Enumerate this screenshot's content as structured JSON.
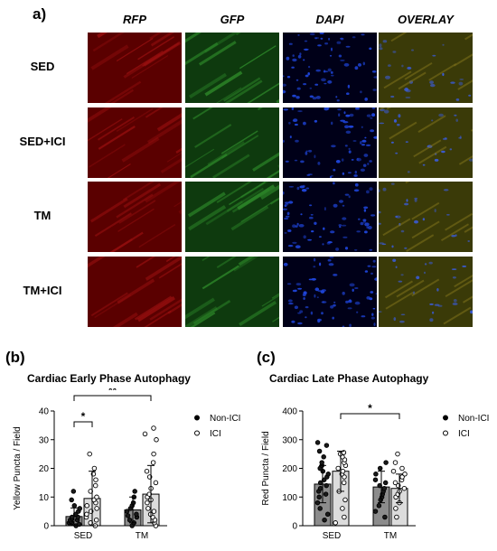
{
  "panel_a": {
    "label": "a)",
    "columns": [
      "RFP",
      "GFP",
      "DAPI",
      "OVERLAY"
    ],
    "rows": [
      "SED",
      "SED+ICI",
      "TM",
      "TM+ICI"
    ],
    "colors": {
      "RFP": [
        "#5a0000",
        "#9a1010"
      ],
      "GFP": [
        "#0e3a0e",
        "#2e8a2a"
      ],
      "DAPI": [
        "#000018",
        "#1e44d8"
      ],
      "OVERLAY": [
        "#3a3a08",
        "#7a6e1a"
      ]
    }
  },
  "chart_data": [
    {
      "panel_label": "(b)",
      "type": "bar",
      "title": "Cardiac Early Phase Autophagy",
      "ylabel": "Yellow Puncta / Field",
      "xlabel": "",
      "categories": [
        "SED",
        "TM"
      ],
      "ylim": [
        0,
        40
      ],
      "yticks": [
        "0",
        "10",
        "20",
        "30",
        "40"
      ],
      "series": [
        {
          "name": "Non-ICI",
          "values": [
            3.2,
            5.5
          ],
          "errors": [
            3.0,
            4.5
          ],
          "marker": "filled",
          "points": [
            [
              0,
              0.5,
              1,
              1,
              1.5,
              2,
              2,
              2.5,
              3,
              3,
              4,
              5,
              6,
              7,
              9,
              12
            ],
            [
              0,
              1,
              2,
              3,
              3.5,
              4,
              5,
              6,
              7,
              8,
              10,
              12
            ]
          ]
        },
        {
          "name": "ICI",
          "values": [
            9.5,
            11
          ],
          "errors": [
            9.5,
            10
          ],
          "marker": "open",
          "points": [
            [
              0,
              1,
              2,
              3,
              4,
              5,
              6,
              7,
              8,
              9,
              10,
              12,
              14,
              16,
              18,
              20,
              25
            ],
            [
              0,
              1,
              2,
              3,
              4,
              5,
              6,
              8,
              9,
              10,
              11,
              13,
              15,
              17,
              19,
              22,
              25,
              30,
              32,
              34
            ]
          ]
        }
      ],
      "significance": [
        {
          "label": "*",
          "from": "SED Non-ICI",
          "to": "SED ICI"
        },
        {
          "label": "**",
          "from": "SED Non-ICI",
          "to": "TM ICI"
        }
      ],
      "legend": [
        "Non-ICI",
        "ICI"
      ],
      "legend_placement": "right"
    },
    {
      "panel_label": "(c)",
      "type": "bar",
      "title": "Cardiac Late Phase Autophagy",
      "ylabel": "Red Puncta / Field",
      "xlabel": "",
      "categories": [
        "SED",
        "TM"
      ],
      "ylim": [
        0,
        400
      ],
      "yticks": [
        "0",
        "100",
        "200",
        "300",
        "400"
      ],
      "series": [
        {
          "name": "Non-ICI",
          "values": [
            145,
            135
          ],
          "errors": [
            65,
            55
          ],
          "marker": "filled",
          "points": [
            [
              20,
              40,
              60,
              80,
              100,
              110,
              120,
              130,
              140,
              150,
              160,
              170,
              180,
              190,
              200,
              210,
              220,
              240,
              260,
              280,
              290
            ],
            [
              30,
              50,
              70,
              90,
              100,
              110,
              120,
              130,
              140,
              150,
              160,
              180,
              200,
              220
            ]
          ]
        },
        {
          "name": "ICI",
          "values": [
            190,
            130
          ],
          "errors": [
            70,
            50
          ],
          "marker": "open",
          "points": [
            [
              10,
              30,
              60,
              90,
              120,
              150,
              170,
              180,
              190,
              200,
              210,
              220,
              230,
              240,
              250,
              255
            ],
            [
              30,
              60,
              80,
              100,
              110,
              120,
              130,
              140,
              150,
              160,
              170,
              180,
              190,
              200,
              220,
              250
            ]
          ]
        }
      ],
      "significance": [
        {
          "label": "*",
          "from": "SED ICI",
          "to": "TM ICI"
        }
      ],
      "legend": [
        "Non-ICI",
        "ICI"
      ],
      "legend_placement": "right"
    }
  ]
}
